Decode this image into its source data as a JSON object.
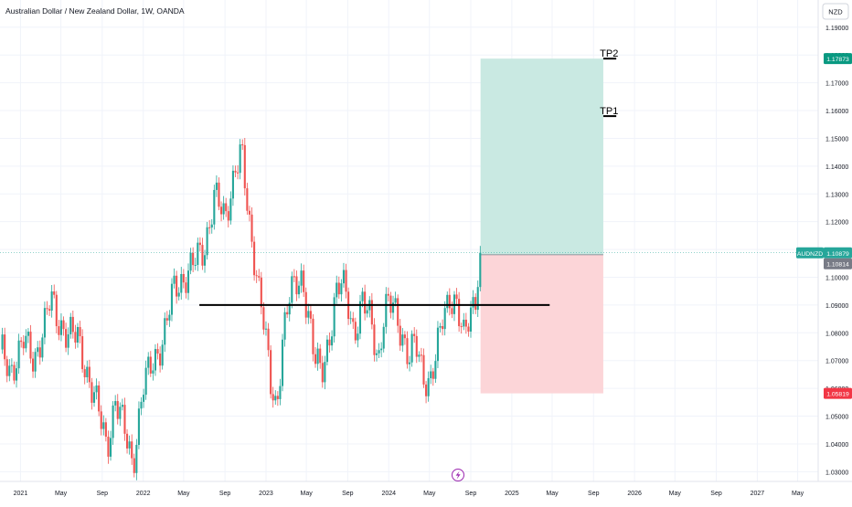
{
  "header": {
    "title": "Australian Dollar / New Zealand Dollar, 1W, OANDA",
    "currency": "NZD"
  },
  "colors": {
    "up": "#26a69a",
    "down": "#ef5350",
    "target_zone": "#c9e9e2",
    "stop_zone": "#fcd5d8",
    "grid": "#f0f3fa",
    "text": "#131722",
    "muted": "#6a6d78"
  },
  "chart_data": {
    "type": "candlestick",
    "symbol": "AUDNZD",
    "interval": "1W",
    "x_range": [
      "2020-11-01",
      "2027-07-01"
    ],
    "y_range": [
      1.0265,
      1.1998
    ],
    "y_ticks": [
      "1.19000",
      "1.18000",
      "1.17000",
      "1.16000",
      "1.15000",
      "1.14000",
      "1.13000",
      "1.12000",
      "1.11000",
      "1.10000",
      "1.09000",
      "1.08000",
      "1.07000",
      "1.06000",
      "1.05000",
      "1.04000",
      "1.03000"
    ],
    "x_ticks": [
      {
        "label": "2021",
        "date": "2021-01-01"
      },
      {
        "label": "May",
        "date": "2021-05-01"
      },
      {
        "label": "Sep",
        "date": "2021-09-01"
      },
      {
        "label": "2022",
        "date": "2022-01-01"
      },
      {
        "label": "May",
        "date": "2022-05-01"
      },
      {
        "label": "Sep",
        "date": "2022-09-01"
      },
      {
        "label": "2023",
        "date": "2023-01-01"
      },
      {
        "label": "May",
        "date": "2023-05-01"
      },
      {
        "label": "Sep",
        "date": "2023-09-01"
      },
      {
        "label": "2024",
        "date": "2024-01-01"
      },
      {
        "label": "May",
        "date": "2024-05-01"
      },
      {
        "label": "Sep",
        "date": "2024-09-01"
      },
      {
        "label": "2025",
        "date": "2025-01-01"
      },
      {
        "label": "May",
        "date": "2025-05-01"
      },
      {
        "label": "Sep",
        "date": "2025-09-01"
      },
      {
        "label": "2026",
        "date": "2026-01-01"
      },
      {
        "label": "May",
        "date": "2026-05-01"
      },
      {
        "label": "Sep",
        "date": "2026-09-01"
      },
      {
        "label": "2027",
        "date": "2027-01-01"
      },
      {
        "label": "May",
        "date": "2027-05-01"
      }
    ],
    "close_path": [
      [
        "2020-11-01",
        1.074
      ],
      [
        "2020-12-01",
        1.066
      ],
      [
        "2021-01-10",
        1.077
      ],
      [
        "2021-02-10",
        1.07
      ],
      [
        "2021-03-15",
        1.084
      ],
      [
        "2021-04-01",
        1.092
      ],
      [
        "2021-04-20",
        1.085
      ],
      [
        "2021-05-20",
        1.08
      ],
      [
        "2021-06-20",
        1.078
      ],
      [
        "2021-07-20",
        1.065
      ],
      [
        "2021-08-20",
        1.052
      ],
      [
        "2021-09-15",
        1.039
      ],
      [
        "2021-10-10",
        1.056
      ],
      [
        "2021-11-05",
        1.045
      ],
      [
        "2021-12-01",
        1.033
      ],
      [
        "2021-12-31",
        1.06
      ],
      [
        "2022-02-01",
        1.07
      ],
      [
        "2022-03-01",
        1.078
      ],
      [
        "2022-04-01",
        1.095
      ],
      [
        "2022-05-01",
        1.1
      ],
      [
        "2022-06-01",
        1.105
      ],
      [
        "2022-07-01",
        1.11
      ],
      [
        "2022-08-01",
        1.13
      ],
      [
        "2022-09-01",
        1.12
      ],
      [
        "2022-10-01",
        1.14
      ],
      [
        "2022-10-20",
        1.145
      ],
      [
        "2022-11-10",
        1.12
      ],
      [
        "2022-12-01",
        1.105
      ],
      [
        "2022-12-20",
        1.09
      ],
      [
        "2023-01-15",
        1.06
      ],
      [
        "2023-02-01",
        1.052
      ],
      [
        "2023-02-20",
        1.08
      ],
      [
        "2023-03-10",
        1.092
      ],
      [
        "2023-04-01",
        1.097
      ],
      [
        "2023-04-20",
        1.1
      ],
      [
        "2023-05-10",
        1.085
      ],
      [
        "2023-05-25",
        1.07
      ],
      [
        "2023-06-15",
        1.065
      ],
      [
        "2023-07-10",
        1.08
      ],
      [
        "2023-07-25",
        1.092
      ],
      [
        "2023-08-15",
        1.098
      ],
      [
        "2023-09-05",
        1.09
      ],
      [
        "2023-09-20",
        1.08
      ],
      [
        "2023-10-15",
        1.09
      ],
      [
        "2023-11-10",
        1.085
      ],
      [
        "2023-12-01",
        1.07
      ],
      [
        "2023-12-20",
        1.088
      ],
      [
        "2024-01-15",
        1.09
      ],
      [
        "2024-02-10",
        1.08
      ],
      [
        "2024-03-01",
        1.07
      ],
      [
        "2024-03-20",
        1.076
      ],
      [
        "2024-04-15",
        1.065
      ],
      [
        "2024-05-01",
        1.062
      ],
      [
        "2024-05-20",
        1.07
      ],
      [
        "2024-06-10",
        1.086
      ],
      [
        "2024-06-30",
        1.094
      ],
      [
        "2024-07-20",
        1.09
      ],
      [
        "2024-08-10",
        1.077
      ],
      [
        "2024-08-30",
        1.088
      ],
      [
        "2024-09-15",
        1.094
      ],
      [
        "2024-09-30",
        1.109
      ]
    ],
    "support_line": {
      "from": "2022-09-01",
      "to": "2025-09-01",
      "price": 1.09
    },
    "position": {
      "type": "long",
      "from": "2024-09-30",
      "to": "2025-09-30",
      "entry": 1.1081,
      "target": 1.1787,
      "stop": 1.0582
    },
    "targets": [
      {
        "label": "TP2",
        "price": 1.1787,
        "from": "2025-09-30",
        "to": "2026-01-01"
      },
      {
        "label": "TP1",
        "price": 1.158,
        "from": "2025-09-30",
        "to": "2026-01-01"
      }
    ],
    "price_labels": [
      {
        "text": "1.17873",
        "price": 1.17873,
        "color": "#089981"
      },
      {
        "text": "AUDNZD",
        "price": 1.10879,
        "color": "#26a69a"
      },
      {
        "text": "1.10879",
        "price": 1.10879,
        "color": "#26a69a"
      },
      {
        "text": "1.10814",
        "price": 1.10814,
        "color": "#787b86"
      },
      {
        "text": "1.05819",
        "price": 1.05819,
        "color": "#f23645"
      }
    ]
  }
}
